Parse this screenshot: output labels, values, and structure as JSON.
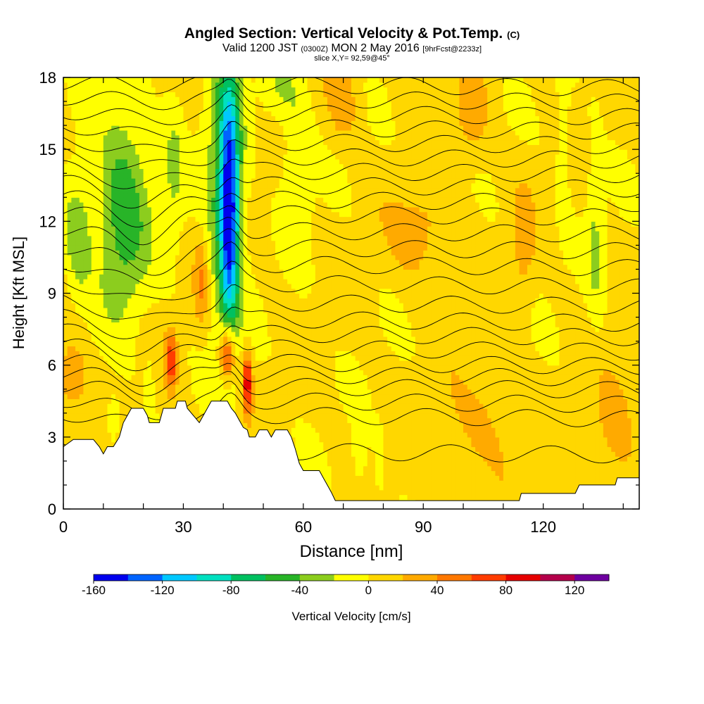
{
  "header": {
    "title": "Angled Section: Vertical Velocity & Pot.Temp.",
    "title_units": "(C)",
    "subtitle_a": "Valid 1200 JST",
    "subtitle_b": "(0300Z)",
    "subtitle_c": "MON 2 May 2016",
    "subtitle_d": "[9hrFcst@2233z]",
    "slice": "slice X,Y= 92,59@45°"
  },
  "colorbar": {
    "title": "Vertical Velocity [cm/s]",
    "tick_labels": [
      "-160",
      "-120",
      "-80",
      "-40",
      "0",
      "40",
      "80",
      "120"
    ],
    "colors": [
      "#0000ee",
      "#0064ff",
      "#00c8ff",
      "#00e0c0",
      "#00c060",
      "#28b428",
      "#8ccd1e",
      "#ffff00",
      "#ffd700",
      "#ffaa00",
      "#ff7800",
      "#ff3c00",
      "#e60000",
      "#b4004b",
      "#6e00a0"
    ]
  },
  "chart_data": {
    "type": "heatmap",
    "title": "Angled Section: Vertical Velocity & Pot.Temp.",
    "xlabel": "Distance [nm]",
    "ylabel": "Height [Kft MSL]",
    "xlim": [
      0,
      144
    ],
    "ylim": [
      0,
      18
    ],
    "x_ticks": [
      0,
      30,
      60,
      90,
      120
    ],
    "y_ticks": [
      0,
      3,
      6,
      9,
      12,
      15,
      18
    ],
    "x_tick_labels": [
      "0",
      "30",
      "60",
      "90",
      "120"
    ],
    "y_tick_labels": [
      "0",
      "3",
      "6",
      "9",
      "12",
      "15",
      "18"
    ],
    "colorbar_levels": [
      -160,
      -140,
      -120,
      -100,
      -80,
      -60,
      -40,
      -20,
      0,
      20,
      40,
      60,
      80,
      100,
      120,
      140
    ],
    "background_value": 5,
    "features": [
      {
        "x": 41.5,
        "y": 12.5,
        "sx": 1.6,
        "sy": 3.4,
        "value": -130
      },
      {
        "x": 40.5,
        "y": 13.5,
        "sx": 3.2,
        "sy": 4.2,
        "value": -60
      },
      {
        "x": 15,
        "y": 12.5,
        "sx": 4.5,
        "sy": 3.0,
        "value": -60
      },
      {
        "x": 3.5,
        "y": 11.5,
        "sx": 2.5,
        "sy": 1.8,
        "value": -40
      },
      {
        "x": 27.5,
        "y": 14.0,
        "sx": 1.8,
        "sy": 2.5,
        "value": -25
      },
      {
        "x": 58.5,
        "y": 14.5,
        "sx": 2.5,
        "sy": 2.5,
        "value": -30
      },
      {
        "x": 53.5,
        "y": 17.5,
        "sx": 3.0,
        "sy": 1.0,
        "value": -25
      },
      {
        "x": 133,
        "y": 11.5,
        "sx": 1.5,
        "sy": 3.2,
        "value": -25
      },
      {
        "x": 125,
        "y": 15.5,
        "sx": 1.2,
        "sy": 2.5,
        "value": -22
      },
      {
        "x": 12.5,
        "y": 3.8,
        "sx": 1.3,
        "sy": 0.8,
        "value": -25
      },
      {
        "x": 21.5,
        "y": 5.3,
        "sx": 0.8,
        "sy": 0.8,
        "value": -20
      },
      {
        "x": 41,
        "y": 6.5,
        "sx": 1.3,
        "sy": 0.8,
        "value": 95
      },
      {
        "x": 46,
        "y": 5.3,
        "sx": 0.8,
        "sy": 0.9,
        "value": 90
      },
      {
        "x": 27,
        "y": 6.2,
        "sx": 1.0,
        "sy": 0.9,
        "value": 65
      },
      {
        "x": 2,
        "y": 5.5,
        "sx": 2.5,
        "sy": 1.0,
        "value": 40
      },
      {
        "x": 34.5,
        "y": 9.5,
        "sx": 1.2,
        "sy": 1.3,
        "value": 35
      },
      {
        "x": 90,
        "y": 11.5,
        "sx": 6,
        "sy": 1.5,
        "value": 25
      },
      {
        "x": 102,
        "y": 16.5,
        "sx": 3,
        "sy": 1.5,
        "value": 25
      },
      {
        "x": 115,
        "y": 11,
        "sx": 2,
        "sy": 2,
        "value": 22
      },
      {
        "x": 70,
        "y": 17,
        "sx": 3,
        "sy": 1.2,
        "value": 25
      },
      {
        "x": 105,
        "y": 3.5,
        "sx": 8,
        "sy": 1.6,
        "value": 20
      },
      {
        "x": 138,
        "y": 3.5,
        "sx": 4,
        "sy": 1.8,
        "value": 25
      },
      {
        "x": 74,
        "y": 2.2,
        "sx": 1.2,
        "sy": 1.0,
        "value": -22
      },
      {
        "x": 79,
        "y": 2.0,
        "sx": 0.8,
        "sy": 1.0,
        "value": -20
      }
    ],
    "terrain": [
      [
        0,
        2.6
      ],
      [
        2.5,
        2.9
      ],
      [
        7.5,
        2.9
      ],
      [
        9,
        2.6
      ],
      [
        10,
        2.3
      ],
      [
        11,
        2.6
      ],
      [
        12.5,
        2.6
      ],
      [
        14,
        3.0
      ],
      [
        15,
        3.6
      ],
      [
        16,
        3.9
      ],
      [
        17,
        4.2
      ],
      [
        20,
        4.2
      ],
      [
        21,
        3.9
      ],
      [
        21.5,
        3.6
      ],
      [
        24,
        3.6
      ],
      [
        24.5,
        3.9
      ],
      [
        25,
        4.2
      ],
      [
        28,
        4.2
      ],
      [
        28.5,
        4.5
      ],
      [
        30.5,
        4.5
      ],
      [
        31,
        4.2
      ],
      [
        32,
        4.0
      ],
      [
        33,
        3.8
      ],
      [
        34,
        3.6
      ],
      [
        35,
        3.9
      ],
      [
        36,
        4.2
      ],
      [
        37,
        4.5
      ],
      [
        41,
        4.5
      ],
      [
        42,
        4.2
      ],
      [
        43,
        4.0
      ],
      [
        44,
        3.7
      ],
      [
        45,
        3.4
      ],
      [
        46,
        3.3
      ],
      [
        46.5,
        3.0
      ],
      [
        48,
        3.0
      ],
      [
        49,
        3.3
      ],
      [
        51,
        3.3
      ],
      [
        52,
        3.0
      ],
      [
        53,
        3.3
      ],
      [
        56,
        3.3
      ],
      [
        57,
        3.0
      ],
      [
        58,
        2.5
      ],
      [
        59,
        1.9
      ],
      [
        60,
        1.6
      ],
      [
        64,
        1.6
      ],
      [
        65,
        1.3
      ],
      [
        66,
        1.0
      ],
      [
        67,
        0.7
      ],
      [
        68,
        0.35
      ],
      [
        96,
        0.35
      ],
      [
        114,
        0.35
      ],
      [
        114.5,
        0.65
      ],
      [
        128,
        0.65
      ],
      [
        129,
        1.0
      ],
      [
        138,
        1.0
      ],
      [
        138.5,
        1.3
      ],
      [
        144,
        1.3
      ]
    ],
    "theta_contours": [
      {
        "base": 2.5,
        "dip": 0.0
      },
      {
        "base": 4.0,
        "dip": -0.5
      },
      {
        "base": 4.6,
        "dip": -0.6
      },
      {
        "base": 5.2,
        "dip": -0.6
      },
      {
        "base": 5.7,
        "dip": -0.6
      },
      {
        "base": 6.2,
        "dip": -0.7
      },
      {
        "base": 6.8,
        "dip": -0.7
      },
      {
        "base": 7.4,
        "dip": -0.8
      },
      {
        "base": 8.0,
        "dip": -0.8
      },
      {
        "base": 8.7,
        "dip": -0.9
      },
      {
        "base": 9.5,
        "dip": -0.9
      },
      {
        "base": 10.3,
        "dip": -1.0
      },
      {
        "base": 11.0,
        "dip": -1.0
      },
      {
        "base": 11.7,
        "dip": -1.0
      },
      {
        "base": 12.4,
        "dip": -1.0
      },
      {
        "base": 13.0,
        "dip": -0.9
      },
      {
        "base": 13.6,
        "dip": -0.8
      },
      {
        "base": 14.2,
        "dip": -0.7
      },
      {
        "base": 14.8,
        "dip": -0.6
      },
      {
        "base": 15.4,
        "dip": -0.5
      },
      {
        "base": 16.0,
        "dip": -0.4
      },
      {
        "base": 16.6,
        "dip": -0.3
      },
      {
        "base": 17.2,
        "dip": -0.2
      },
      {
        "base": 17.8,
        "dip": -0.1
      }
    ]
  }
}
